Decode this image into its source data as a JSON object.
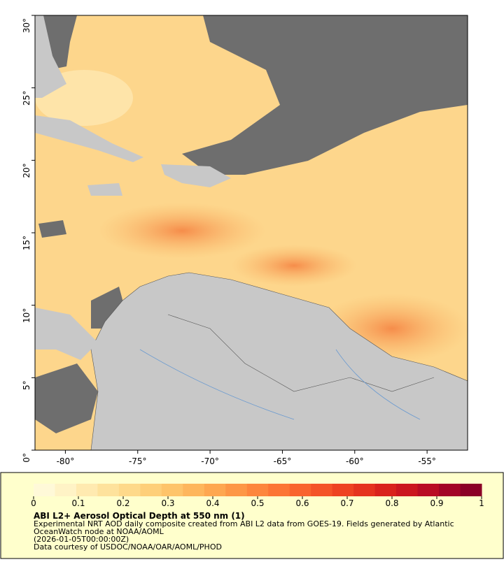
{
  "map": {
    "xlim": [
      -82.1,
      -52.2
    ],
    "ylim": [
      0,
      30
    ],
    "xticks": [
      {
        "value": -80,
        "label": "-80°"
      },
      {
        "value": -75,
        "label": "-75°"
      },
      {
        "value": -70,
        "label": "-70°"
      },
      {
        "value": -65,
        "label": "-65°"
      },
      {
        "value": -60,
        "label": "-60°"
      },
      {
        "value": -55,
        "label": "-55°"
      }
    ],
    "yticks": [
      {
        "value": 0,
        "label": "0°"
      },
      {
        "value": 5,
        "label": "5°"
      },
      {
        "value": 10,
        "label": "10°"
      },
      {
        "value": 15,
        "label": "15°"
      },
      {
        "value": 20,
        "label": "20°"
      },
      {
        "value": 25,
        "label": "25°"
      },
      {
        "value": 30,
        "label": "30°"
      }
    ]
  },
  "colorbar": {
    "lim": [
      0,
      1
    ],
    "ticks": [
      0,
      0.1,
      0.2,
      0.3,
      0.4,
      0.5,
      0.6,
      0.7,
      0.8,
      0.9,
      1
    ],
    "colors": [
      "#fff9d8",
      "#fff3c6",
      "#ffeab0",
      "#fee29c",
      "#fed98a",
      "#fecf79",
      "#fec46a",
      "#feb65c",
      "#fea750",
      "#fd9746",
      "#fd863d",
      "#fc7535",
      "#f9642e",
      "#f45328",
      "#ee4222",
      "#e5321e",
      "#d9221c",
      "#cb161f",
      "#b90c24",
      "#a30427",
      "#8b0026"
    ]
  },
  "title": "ABI L2+ Aerosol Optical Depth at 550 nm (1)",
  "description": [
    "Experimental NRT AOD daily composite created from ABI L2 data from GOES-19. Fields generated by Atlantic",
    "OceanWatch node at NOAA/AOML",
    "(2026-01-05T00:00:00Z)",
    "Data courtesy of USDOC/NOAA/OAR/AOML/PHOD"
  ]
}
